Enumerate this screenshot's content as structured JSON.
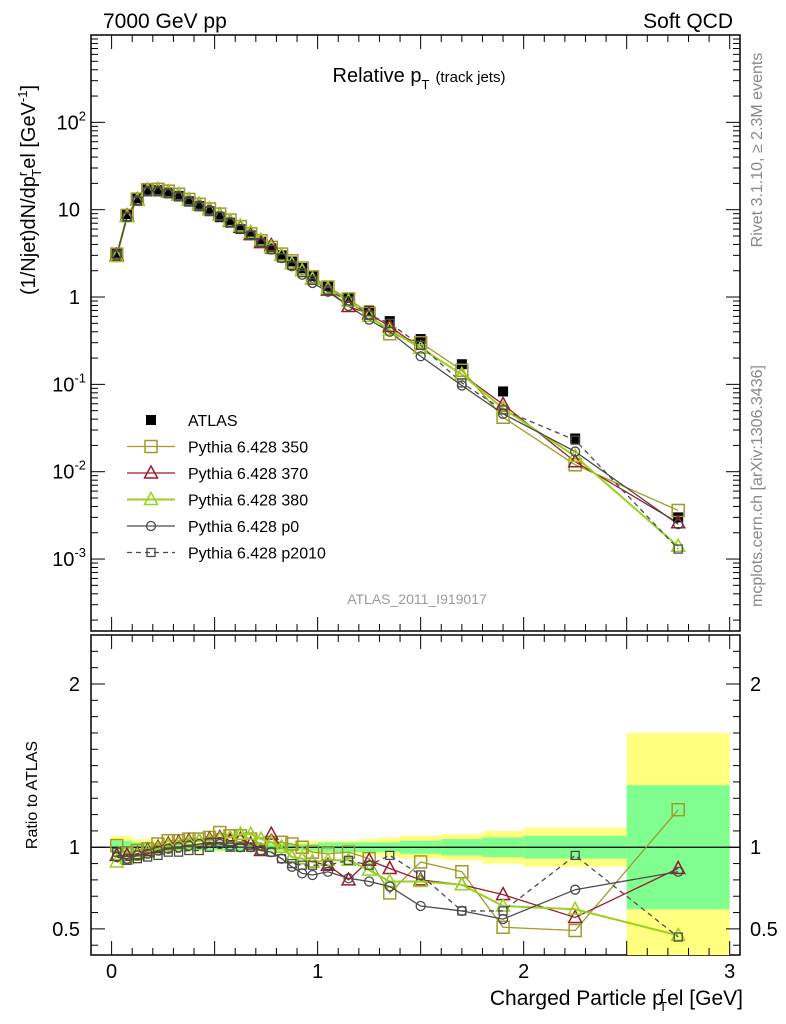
{
  "header": {
    "left": "7000 GeV pp",
    "right": "Soft QCD"
  },
  "side": {
    "rivet": "Rivet 3.1.10, ≥ 2.3M events",
    "mcplots": "mcplots.cern.ch [arXiv:1306.3436]"
  },
  "main_title": {
    "text": "Relative p",
    "sub": "T",
    "suffix": "(track jets)"
  },
  "watermark": "ATLAS_2011_I919017",
  "ylabel_main": "(1/Njet)dN/dp",
  "ylabel_main_sub": "T",
  "ylabel_main_sup": "r",
  "ylabel_main_rest": "el [GeV",
  "ylabel_main_unit_sup": "-1",
  "ylabel_main_close": "]",
  "ylabel_ratio": "Ratio to ATLAS",
  "xlabel": {
    "main": "Charged Particle p",
    "sup": "r",
    "sub": "T",
    "rest": "el [GeV]"
  },
  "colors": {
    "ATLAS": "#000000",
    "p350": "#a09a2a",
    "p370": "#9b1c2c",
    "p380": "#96d21e",
    "p0": "#4a4a4a",
    "p2010": "#4a4a4a",
    "band_outer": "#ffff80",
    "band_inner": "#80ff90"
  },
  "chart_data": [
    {
      "type": "line",
      "panel": "main",
      "yscale": "log",
      "xlim": [
        -0.1,
        3.05
      ],
      "ylim": [
        0.00015,
        1000
      ],
      "yticks": [
        {
          "v": 0.001,
          "base": "10",
          "exp": "-3"
        },
        {
          "v": 0.01,
          "base": "10",
          "exp": "-2"
        },
        {
          "v": 0.1,
          "base": "10",
          "exp": "-1"
        },
        {
          "v": 1,
          "base": "1",
          "exp": ""
        },
        {
          "v": 10,
          "base": "10",
          "exp": ""
        },
        {
          "v": 100,
          "base": "10",
          "exp": "2"
        }
      ],
      "legend_placement": "lower-left",
      "x": [
        0.025,
        0.075,
        0.125,
        0.175,
        0.225,
        0.275,
        0.325,
        0.375,
        0.425,
        0.475,
        0.525,
        0.575,
        0.625,
        0.675,
        0.725,
        0.775,
        0.825,
        0.875,
        0.925,
        0.975,
        1.05,
        1.15,
        1.25,
        1.35,
        1.5,
        1.7,
        1.9,
        2.25,
        2.75
      ],
      "series": [
        {
          "name": "ATLAS",
          "key": "ATLAS",
          "marker": "filled-square",
          "values": [
            3.2,
            8.9,
            13.5,
            17.0,
            16.8,
            15.7,
            14.4,
            12.5,
            11.0,
            9.6,
            8.2,
            7.1,
            6.0,
            5.1,
            4.3,
            3.6,
            3.0,
            2.55,
            2.15,
            1.75,
            1.35,
            0.98,
            0.7,
            0.53,
            0.33,
            0.17,
            0.083,
            0.024,
            0.003
          ]
        },
        {
          "name": "Pythia 6.428 350",
          "key": "p350",
          "marker": "open-square",
          "values": [
            3.1,
            8.6,
            13.2,
            16.9,
            17.1,
            16.3,
            15.0,
            13.1,
            11.5,
            10.2,
            8.9,
            7.6,
            6.4,
            5.3,
            4.4,
            3.7,
            3.1,
            2.6,
            2.15,
            1.7,
            1.3,
            0.95,
            0.65,
            0.38,
            0.3,
            0.145,
            0.042,
            0.012,
            0.0036
          ]
        },
        {
          "name": "Pythia 6.428 370",
          "key": "p370",
          "marker": "open-triangle",
          "values": [
            3.0,
            8.5,
            13.0,
            16.7,
            16.9,
            16.0,
            14.8,
            13.0,
            11.5,
            10.1,
            8.7,
            7.4,
            6.3,
            5.2,
            4.2,
            3.9,
            3.0,
            2.4,
            2.0,
            1.6,
            1.2,
            0.78,
            0.64,
            0.46,
            0.26,
            0.13,
            0.059,
            0.013,
            0.0026
          ]
        },
        {
          "name": "Pythia 6.428 380",
          "key": "p380",
          "marker": "open-triangle",
          "values": [
            2.9,
            8.3,
            12.8,
            16.5,
            16.7,
            15.9,
            14.7,
            12.9,
            11.4,
            10.0,
            8.6,
            7.5,
            6.5,
            5.5,
            4.5,
            3.7,
            3.0,
            2.4,
            2.0,
            1.6,
            1.25,
            0.9,
            0.6,
            0.42,
            0.26,
            0.13,
            0.053,
            0.015,
            0.0014
          ]
        },
        {
          "name": "Pythia 6.428 p0",
          "key": "p0",
          "marker": "open-circle",
          "values": [
            3.0,
            8.3,
            12.8,
            16.4,
            16.4,
            15.5,
            14.4,
            12.6,
            11.2,
            9.9,
            8.4,
            7.2,
            6.0,
            5.1,
            4.2,
            3.5,
            2.8,
            2.25,
            1.8,
            1.45,
            1.15,
            0.79,
            0.55,
            0.4,
            0.21,
            0.097,
            0.046,
            0.017,
            0.0025
          ]
        },
        {
          "name": "Pythia 6.428 p2010",
          "key": "p2010",
          "marker": "open-square-small",
          "dashed": true,
          "values": [
            3.1,
            8.2,
            12.5,
            16.0,
            16.0,
            15.2,
            14.0,
            12.2,
            10.8,
            9.6,
            8.4,
            7.1,
            6.0,
            5.1,
            4.2,
            3.5,
            2.8,
            2.3,
            1.9,
            1.55,
            1.2,
            0.9,
            0.62,
            0.5,
            0.28,
            0.104,
            0.051,
            0.023,
            0.0013
          ]
        }
      ]
    },
    {
      "type": "line",
      "panel": "ratio",
      "ylabel": "Ratio to ATLAS",
      "xlabel": "Charged Particle p_T^rel [GeV]",
      "xlim": [
        -0.1,
        3.05
      ],
      "ylim": [
        0.34,
        2.3
      ],
      "yticks": [
        0.5,
        1,
        2
      ],
      "xticks": [
        0,
        1,
        2,
        3
      ],
      "x": [
        0.025,
        0.075,
        0.125,
        0.175,
        0.225,
        0.275,
        0.325,
        0.375,
        0.425,
        0.475,
        0.525,
        0.575,
        0.625,
        0.675,
        0.725,
        0.775,
        0.825,
        0.875,
        0.925,
        0.975,
        1.05,
        1.15,
        1.25,
        1.35,
        1.5,
        1.7,
        1.9,
        2.25,
        2.75
      ],
      "bands": {
        "edges": [
          0.0,
          0.1,
          0.2,
          0.3,
          0.4,
          0.5,
          0.6,
          0.7,
          0.8,
          0.9,
          1.0,
          1.1,
          1.2,
          1.3,
          1.4,
          1.6,
          1.8,
          2.0,
          2.5,
          3.0
        ],
        "outer": [
          0.07,
          0.05,
          0.04,
          0.03,
          0.03,
          0.03,
          0.03,
          0.03,
          0.03,
          0.04,
          0.04,
          0.04,
          0.05,
          0.06,
          0.07,
          0.08,
          0.1,
          0.12,
          0.7
        ],
        "inner": [
          0.04,
          0.03,
          0.02,
          0.02,
          0.02,
          0.02,
          0.02,
          0.02,
          0.02,
          0.02,
          0.03,
          0.03,
          0.03,
          0.03,
          0.04,
          0.05,
          0.06,
          0.07,
          0.38
        ]
      },
      "series": [
        {
          "key": "p350",
          "values": [
            1.01,
            0.96,
            0.98,
            0.99,
            1.02,
            1.04,
            1.04,
            1.05,
            1.05,
            1.06,
            1.09,
            1.07,
            1.07,
            1.05,
            1.02,
            1.03,
            1.03,
            1.02,
            1.0,
            0.97,
            0.96,
            0.97,
            0.93,
            0.72,
            0.91,
            0.85,
            0.51,
            0.49,
            1.23
          ]
        },
        {
          "key": "p370",
          "values": [
            0.95,
            0.95,
            0.96,
            0.98,
            1.0,
            1.02,
            1.03,
            1.04,
            1.04,
            1.05,
            1.06,
            1.04,
            1.05,
            1.02,
            0.98,
            1.08,
            1.0,
            0.94,
            0.93,
            0.91,
            0.89,
            0.8,
            0.92,
            0.87,
            0.8,
            0.77,
            0.71,
            0.57,
            0.87
          ]
        },
        {
          "key": "p380",
          "values": [
            0.91,
            0.93,
            0.95,
            0.97,
            0.99,
            1.01,
            1.02,
            1.03,
            1.04,
            1.04,
            1.05,
            1.06,
            1.08,
            1.08,
            1.05,
            1.03,
            1.0,
            0.94,
            0.93,
            0.91,
            0.92,
            0.92,
            0.86,
            0.79,
            0.79,
            0.77,
            0.64,
            0.62,
            0.46
          ]
        },
        {
          "key": "p0",
          "values": [
            0.94,
            0.93,
            0.95,
            0.96,
            0.98,
            0.99,
            1.0,
            1.01,
            1.02,
            1.03,
            1.02,
            1.01,
            1.0,
            1.0,
            0.98,
            0.97,
            0.93,
            0.88,
            0.84,
            0.83,
            0.85,
            0.81,
            0.79,
            0.76,
            0.64,
            0.61,
            0.56,
            0.74,
            0.85
          ]
        },
        {
          "key": "p2010",
          "values": [
            0.97,
            0.92,
            0.93,
            0.94,
            0.95,
            0.97,
            0.97,
            0.98,
            0.98,
            1.0,
            1.03,
            1.0,
            1.0,
            1.0,
            0.98,
            0.97,
            0.93,
            0.9,
            0.89,
            0.89,
            0.89,
            0.92,
            0.89,
            0.95,
            0.83,
            0.61,
            0.61,
            0.95,
            0.45
          ]
        }
      ]
    }
  ]
}
